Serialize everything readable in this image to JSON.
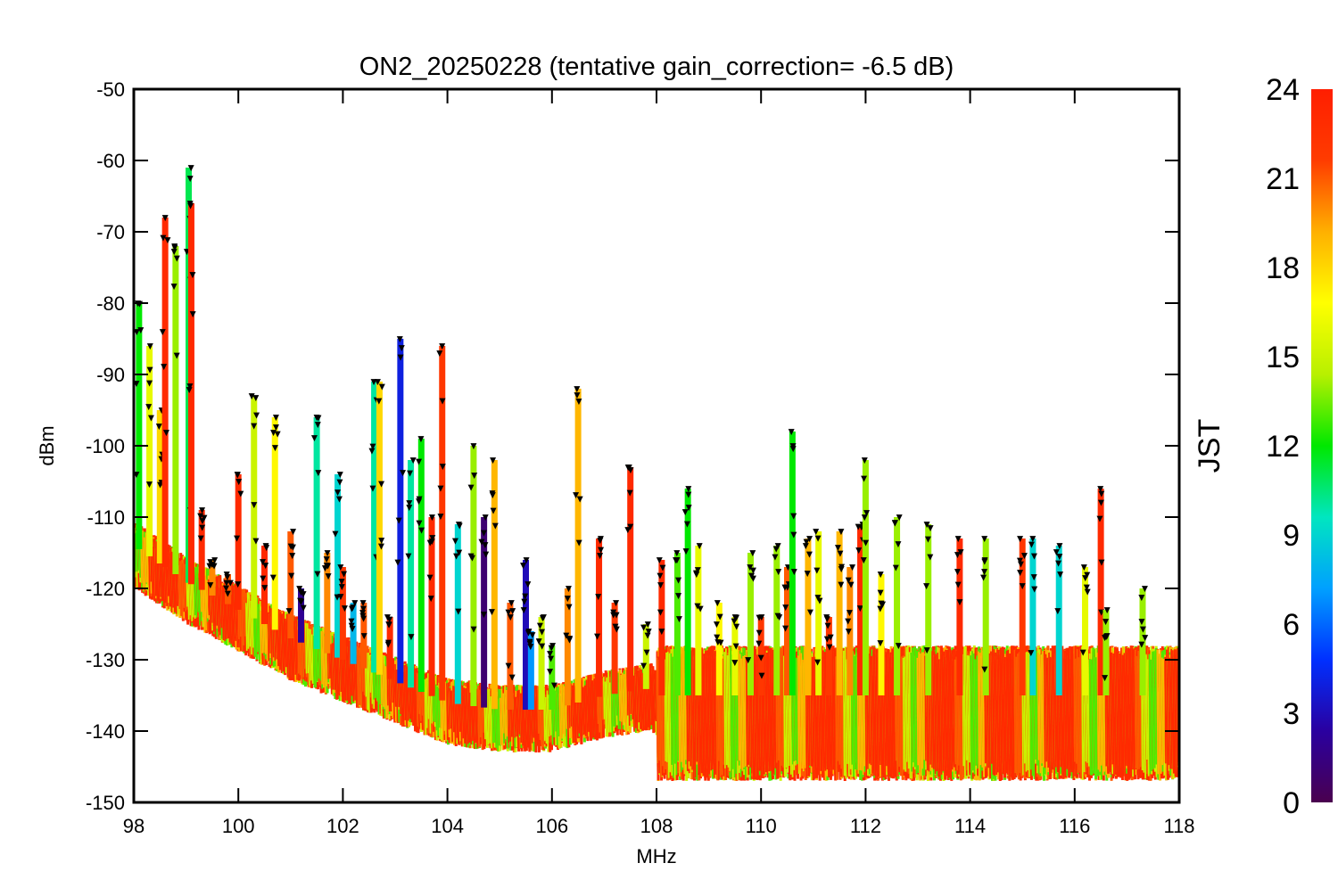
{
  "chart_data": {
    "type": "scatter",
    "title": "ON2_20250228 (tentative gain_correction= -6.5 dB)",
    "xlabel": "MHz",
    "ylabel": "dBm",
    "xlim": [
      98,
      118
    ],
    "ylim": [
      -150,
      -50
    ],
    "xticks": [
      98,
      100,
      102,
      104,
      106,
      108,
      110,
      112,
      114,
      116,
      118
    ],
    "yticks": [
      -50,
      -60,
      -70,
      -80,
      -90,
      -100,
      -110,
      -120,
      -130,
      -140,
      -150
    ],
    "grid": false,
    "colorbar": {
      "label": "JST",
      "range": [
        0,
        24
      ],
      "ticks": [
        0,
        3,
        6,
        9,
        12,
        15,
        18,
        21,
        24
      ],
      "colormap": "rainbow",
      "stops": [
        "#4a004f",
        "#2a00a0",
        "#0030ff",
        "#00a0ff",
        "#00e6c0",
        "#00e800",
        "#b8f000",
        "#ffff00",
        "#ffb000",
        "#ff3c00",
        "#ff1e00"
      ]
    },
    "noise_floor": {
      "x": [
        98,
        99,
        100,
        101,
        102,
        103,
        104,
        105,
        106,
        107,
        107.9,
        108,
        110,
        112,
        114,
        116,
        118
      ],
      "y": [
        -114,
        -119,
        -123,
        -127,
        -130,
        -133,
        -136,
        -137,
        -137,
        -135,
        -134,
        -135,
        -135,
        -135,
        -135,
        -135,
        -135
      ]
    },
    "series": [
      {
        "x": 98.1,
        "peak": -80,
        "jst": 12
      },
      {
        "x": 98.3,
        "peak": -86,
        "jst": 16
      },
      {
        "x": 98.5,
        "peak": -95,
        "jst": 18
      },
      {
        "x": 98.6,
        "peak": -68,
        "jst": 23
      },
      {
        "x": 98.8,
        "peak": -72,
        "jst": 14
      },
      {
        "x": 99.05,
        "peak": -61,
        "jst": 11
      },
      {
        "x": 99.1,
        "peak": -66,
        "jst": 23
      },
      {
        "x": 99.3,
        "peak": -109,
        "jst": 23
      },
      {
        "x": 99.5,
        "peak": -116,
        "jst": 20
      },
      {
        "x": 99.8,
        "peak": -118,
        "jst": 21
      },
      {
        "x": 100.0,
        "peak": -104,
        "jst": 23
      },
      {
        "x": 100.3,
        "peak": -93,
        "jst": 15
      },
      {
        "x": 100.5,
        "peak": -114,
        "jst": 23
      },
      {
        "x": 100.7,
        "peak": -96,
        "jst": 17
      },
      {
        "x": 101.0,
        "peak": -112,
        "jst": 21
      },
      {
        "x": 101.2,
        "peak": -120,
        "jst": 2
      },
      {
        "x": 101.5,
        "peak": -96,
        "jst": 10
      },
      {
        "x": 101.7,
        "peak": -115,
        "jst": 20
      },
      {
        "x": 101.9,
        "peak": -104,
        "jst": 9
      },
      {
        "x": 102.0,
        "peak": -117,
        "jst": 22
      },
      {
        "x": 102.2,
        "peak": -122,
        "jst": 8
      },
      {
        "x": 102.4,
        "peak": -122,
        "jst": 21
      },
      {
        "x": 102.6,
        "peak": -91,
        "jst": 10
      },
      {
        "x": 102.7,
        "peak": -91,
        "jst": 18
      },
      {
        "x": 102.9,
        "peak": -124,
        "jst": 23
      },
      {
        "x": 103.1,
        "peak": -85,
        "jst": 4
      },
      {
        "x": 103.3,
        "peak": -102,
        "jst": 10
      },
      {
        "x": 103.5,
        "peak": -99,
        "jst": 12
      },
      {
        "x": 103.7,
        "peak": -110,
        "jst": 23
      },
      {
        "x": 103.9,
        "peak": -86,
        "jst": 22
      },
      {
        "x": 104.2,
        "peak": -111,
        "jst": 9
      },
      {
        "x": 104.5,
        "peak": -100,
        "jst": 14
      },
      {
        "x": 104.7,
        "peak": -110,
        "jst": 1
      },
      {
        "x": 104.9,
        "peak": -102,
        "jst": 19
      },
      {
        "x": 105.2,
        "peak": -122,
        "jst": 21
      },
      {
        "x": 105.5,
        "peak": -116,
        "jst": 3
      },
      {
        "x": 105.6,
        "peak": -126,
        "jst": 7
      },
      {
        "x": 105.8,
        "peak": -124,
        "jst": 15
      },
      {
        "x": 106.0,
        "peak": -128,
        "jst": 13
      },
      {
        "x": 106.3,
        "peak": -120,
        "jst": 20
      },
      {
        "x": 106.5,
        "peak": -92,
        "jst": 19
      },
      {
        "x": 106.9,
        "peak": -113,
        "jst": 23
      },
      {
        "x": 107.2,
        "peak": -122,
        "jst": 22
      },
      {
        "x": 107.5,
        "peak": -103,
        "jst": 23
      },
      {
        "x": 107.8,
        "peak": -125,
        "jst": 15
      },
      {
        "x": 108.1,
        "peak": -116,
        "jst": 23
      },
      {
        "x": 108.4,
        "peak": -115,
        "jst": 13
      },
      {
        "x": 108.6,
        "peak": -106,
        "jst": 12
      },
      {
        "x": 108.8,
        "peak": -114,
        "jst": 16
      },
      {
        "x": 109.2,
        "peak": -122,
        "jst": 17
      },
      {
        "x": 109.5,
        "peak": -124,
        "jst": 16
      },
      {
        "x": 109.8,
        "peak": -115,
        "jst": 14
      },
      {
        "x": 110.0,
        "peak": -124,
        "jst": 22
      },
      {
        "x": 110.3,
        "peak": -114,
        "jst": 14
      },
      {
        "x": 110.5,
        "peak": -117,
        "jst": 21
      },
      {
        "x": 110.6,
        "peak": -98,
        "jst": 12
      },
      {
        "x": 110.9,
        "peak": -113,
        "jst": 19
      },
      {
        "x": 111.1,
        "peak": -112,
        "jst": 16
      },
      {
        "x": 111.3,
        "peak": -124,
        "jst": 22
      },
      {
        "x": 111.5,
        "peak": -112,
        "jst": 19
      },
      {
        "x": 111.7,
        "peak": -117,
        "jst": 20
      },
      {
        "x": 111.9,
        "peak": -111,
        "jst": 23
      },
      {
        "x": 112.0,
        "peak": -102,
        "jst": 14
      },
      {
        "x": 112.3,
        "peak": -118,
        "jst": 17
      },
      {
        "x": 112.6,
        "peak": -110,
        "jst": 14
      },
      {
        "x": 113.2,
        "peak": -111,
        "jst": 14
      },
      {
        "x": 113.8,
        "peak": -113,
        "jst": 23
      },
      {
        "x": 114.3,
        "peak": -113,
        "jst": 14
      },
      {
        "x": 115.0,
        "peak": -113,
        "jst": 22
      },
      {
        "x": 115.2,
        "peak": -113,
        "jst": 9
      },
      {
        "x": 115.7,
        "peak": -114,
        "jst": 9
      },
      {
        "x": 116.2,
        "peak": -117,
        "jst": 16
      },
      {
        "x": 116.5,
        "peak": -106,
        "jst": 23
      },
      {
        "x": 116.6,
        "peak": -123,
        "jst": 14
      },
      {
        "x": 117.3,
        "peak": -120,
        "jst": 14
      }
    ]
  }
}
